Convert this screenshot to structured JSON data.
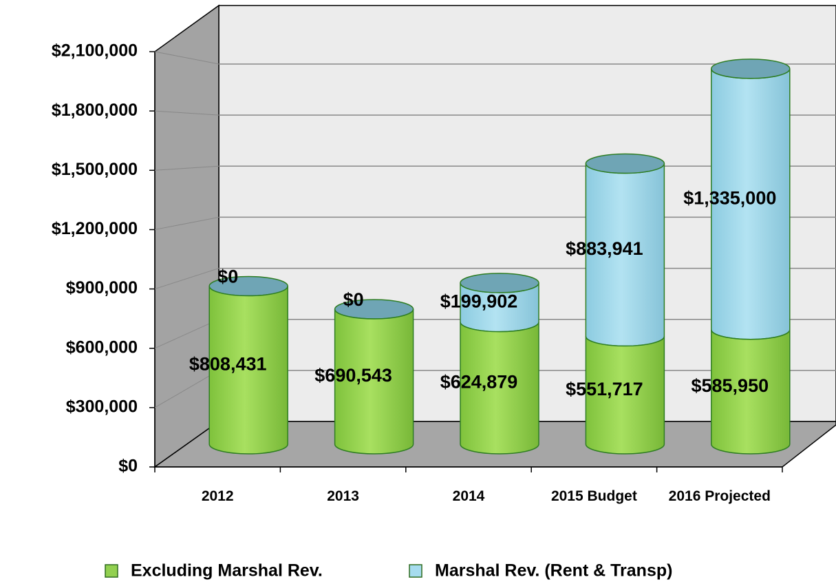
{
  "chart_data": {
    "type": "bar",
    "stacked": true,
    "categories": [
      "2012",
      "2013",
      "2014",
      "2015 Budget",
      "2016 Projected"
    ],
    "series": [
      {
        "name": "Excluding Marshal Rev.",
        "color": "#92d050",
        "values": [
          808431,
          690543,
          624879,
          551717,
          585950
        ],
        "value_labels": [
          "$808,431",
          "$690,543",
          "$624,879",
          "$551,717",
          "$585,950"
        ]
      },
      {
        "name": "Marshal Rev. (Rent & Transp)",
        "color": "#a6dcef",
        "values": [
          0,
          0,
          199902,
          883941,
          1335000
        ],
        "value_labels": [
          "$0",
          "$0",
          "$199,902",
          "$883,941",
          "$1,335,000"
        ]
      }
    ],
    "ylim": [
      0,
      2100000
    ],
    "yticks": [
      {
        "value": 0,
        "label": "$0"
      },
      {
        "value": 300000,
        "label": "$300,000"
      },
      {
        "value": 600000,
        "label": "$600,000"
      },
      {
        "value": 900000,
        "label": "$900,000"
      },
      {
        "value": 1200000,
        "label": "$1,200,000"
      },
      {
        "value": 1500000,
        "label": "$1,500,000"
      },
      {
        "value": 1800000,
        "label": "$1,800,000"
      },
      {
        "value": 2100000,
        "label": "$2,100,000"
      }
    ],
    "grid": true
  }
}
